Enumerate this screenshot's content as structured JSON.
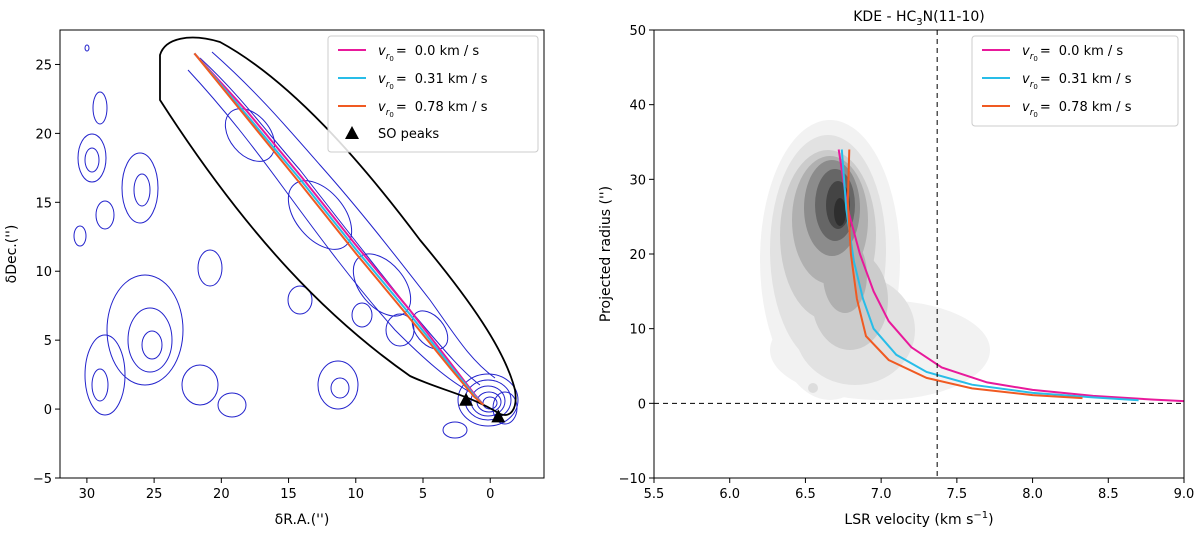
{
  "chart_data": [
    {
      "type": "line",
      "panel": "left",
      "title": "",
      "xlabel": "δR.A.('')",
      "ylabel": "δDec.('')",
      "xlim": [
        32,
        -4
      ],
      "ylim": [
        -5,
        27.5
      ],
      "xticks": [
        30,
        25,
        20,
        15,
        10,
        5,
        0
      ],
      "yticks": [
        -5,
        0,
        5,
        10,
        15,
        20,
        25
      ],
      "series": [
        {
          "name": "v_r0 = 0.0 km / s",
          "color": "#e8199b",
          "x": [
            22,
            18,
            14,
            10,
            6,
            3,
            1.2,
            0.5
          ],
          "y": [
            25.8,
            21.5,
            16.8,
            11.9,
            7.2,
            3.4,
            1.1,
            0.3
          ]
        },
        {
          "name": "v_r0 = 0.31 km / s",
          "color": "#28bde8",
          "x": [
            22,
            18,
            14,
            10,
            6,
            3,
            1.2,
            0.5
          ],
          "y": [
            25.8,
            21.2,
            16.5,
            11.6,
            6.9,
            3.2,
            1.0,
            0.3
          ]
        },
        {
          "name": "v_r0 = 0.78 km / s",
          "color": "#f05a22",
          "x": [
            22,
            18,
            14,
            10,
            6,
            3,
            1.2,
            0.5
          ],
          "y": [
            25.8,
            21.0,
            16.2,
            11.3,
            6.6,
            3.0,
            0.9,
            0.3
          ]
        }
      ],
      "markers": {
        "name": "SO peaks",
        "x": [
          1.8,
          -0.6
        ],
        "y": [
          0.6,
          -0.6
        ]
      },
      "legend_position": "top-right",
      "legend": [
        "0.0 km / s",
        "0.31 km / s",
        "0.78 km / s",
        "SO peaks"
      ]
    },
    {
      "type": "line",
      "panel": "right",
      "title": "KDE - HC3N(11-10)",
      "xlabel": "LSR velocity (km s−1)",
      "ylabel": "Projected radius ('')",
      "xlim": [
        5.5,
        9.0
      ],
      "ylim": [
        -10,
        50
      ],
      "xticks": [
        "5.5",
        "6.0",
        "6.5",
        "7.0",
        "7.5",
        "8.0",
        "8.5",
        "9.0"
      ],
      "yticks": [
        "−10",
        "0",
        "10",
        "20",
        "30",
        "40",
        "50"
      ],
      "reference_lines": {
        "vertical_x": 7.37,
        "horizontal_y": 0
      },
      "series": [
        {
          "name": "v_r0 = 0.0 km / s",
          "color": "#e8199b",
          "x": [
            6.72,
            6.78,
            6.86,
            6.95,
            7.05,
            7.2,
            7.4,
            7.7,
            8.0,
            8.4,
            8.8,
            9.0
          ],
          "y": [
            34,
            26,
            20,
            15,
            11,
            7.5,
            4.8,
            2.8,
            1.8,
            1.0,
            0.5,
            0.3
          ]
        },
        {
          "name": "v_r0 = 0.31 km / s",
          "color": "#28bde8",
          "x": [
            6.74,
            6.77,
            6.82,
            6.88,
            6.95,
            7.1,
            7.3,
            7.6,
            8.0,
            8.4,
            8.7
          ],
          "y": [
            34,
            26,
            19,
            14,
            10,
            6.5,
            4.2,
            2.5,
            1.4,
            0.8,
            0.4
          ]
        },
        {
          "name": "v_r0 = 0.78 km / s",
          "color": "#f05a22",
          "x": [
            6.79,
            6.78,
            6.8,
            6.84,
            6.9,
            7.05,
            7.3,
            7.6,
            8.0,
            8.33
          ],
          "y": [
            34,
            27,
            20,
            14,
            9,
            5.8,
            3.4,
            2.0,
            1.1,
            0.7
          ]
        }
      ],
      "legend_position": "top-right",
      "legend": [
        "0.0 km / s",
        "0.31 km / s",
        "0.78 km / s"
      ]
    }
  ],
  "legend_math": {
    "v": "v",
    "sub_r": "r",
    "sub_0": "0",
    "eq": "="
  },
  "title_parts": {
    "prefix": "KDE - HC",
    "sub": "3",
    "suffix": "N(11-10)"
  },
  "ylabel_left": "δDec.('')",
  "xlabel_left": "δR.A.('')",
  "xlabel_right_main": "LSR velocity (km s",
  "xlabel_right_sup": "−1",
  "xlabel_right_end": ")",
  "ylabel_right": "Projected radius ('')"
}
